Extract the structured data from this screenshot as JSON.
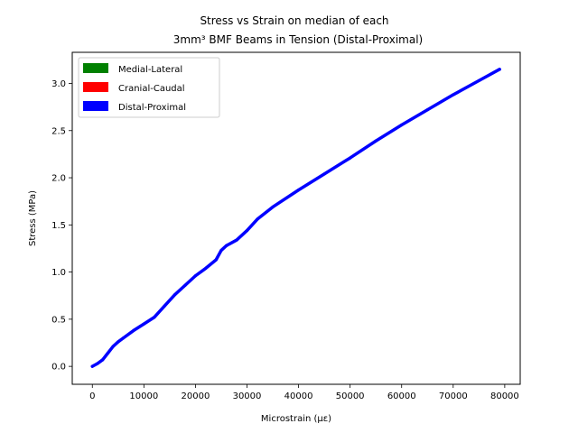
{
  "chart_data": {
    "type": "line",
    "title_line1": "Stress vs Strain on median of each",
    "title_line2": "3mm³ BMF Beams in Tension (Distal-Proximal)",
    "xlabel": "Microstrain (με)",
    "ylabel": "Stress (MPa)",
    "xlim": [
      -3900,
      83000
    ],
    "ylim": [
      -0.19,
      3.33
    ],
    "xticks": [
      0,
      10000,
      20000,
      30000,
      40000,
      50000,
      60000,
      70000,
      80000
    ],
    "yticks": [
      0.0,
      0.5,
      1.0,
      1.5,
      2.0,
      2.5,
      3.0
    ],
    "xtick_labels": [
      "0",
      "10000",
      "20000",
      "30000",
      "40000",
      "50000",
      "60000",
      "70000",
      "80000"
    ],
    "ytick_labels": [
      "0.0",
      "0.5",
      "1.0",
      "1.5",
      "2.0",
      "2.5",
      "3.0"
    ],
    "grid": false,
    "legend_position": "upper-left",
    "legend": [
      {
        "label": "Medial-Lateral",
        "color": "#008000"
      },
      {
        "label": "Cranial-Caudal",
        "color": "#ff0000"
      },
      {
        "label": "Distal-Proximal",
        "color": "#0000ff"
      }
    ],
    "series": [
      {
        "name": "Distal-Proximal",
        "color": "#0000ff",
        "x": [
          0,
          1000,
          2000,
          3000,
          4000,
          5000,
          6000,
          8000,
          10000,
          12000,
          14000,
          16000,
          18000,
          20000,
          22000,
          24000,
          25000,
          26000,
          28000,
          30000,
          32000,
          35000,
          40000,
          45000,
          50000,
          55000,
          60000,
          65000,
          70000,
          75000,
          79000
        ],
        "y": [
          0.0,
          0.03,
          0.07,
          0.14,
          0.21,
          0.26,
          0.3,
          0.38,
          0.45,
          0.52,
          0.64,
          0.76,
          0.86,
          0.96,
          1.04,
          1.13,
          1.23,
          1.28,
          1.34,
          1.44,
          1.56,
          1.69,
          1.87,
          2.04,
          2.21,
          2.39,
          2.56,
          2.72,
          2.88,
          3.03,
          3.15
        ]
      }
    ]
  }
}
